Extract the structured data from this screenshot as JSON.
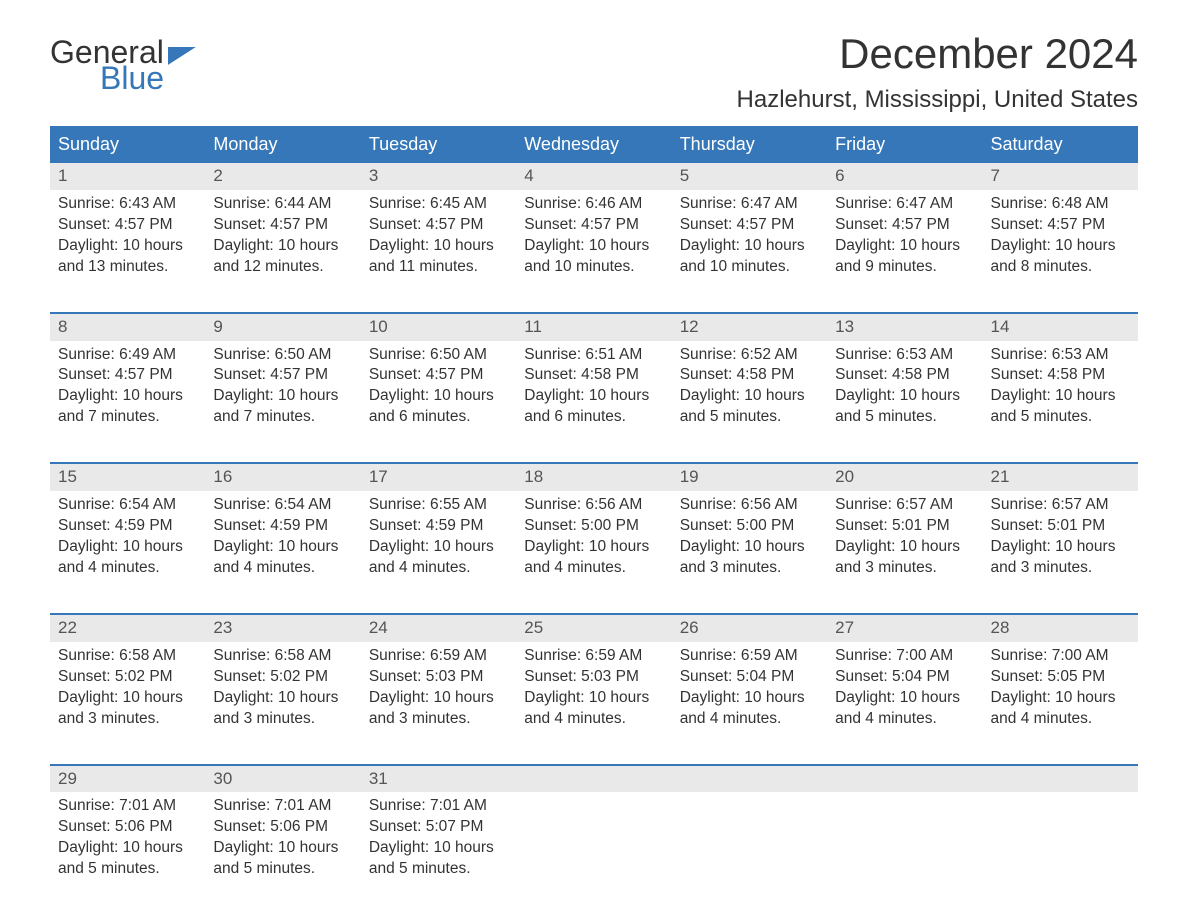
{
  "logo": {
    "line1": "General",
    "line2": "Blue"
  },
  "title": "December 2024",
  "location": "Hazlehurst, Mississippi, United States",
  "colors": {
    "header_bg": "#3577b8",
    "header_text": "#ffffff",
    "daynum_band_bg": "#e9e9e9",
    "text": "#333333",
    "rule": "#3577b8",
    "logo_accent": "#3577b8"
  },
  "day_headers": [
    "Sunday",
    "Monday",
    "Tuesday",
    "Wednesday",
    "Thursday",
    "Friday",
    "Saturday"
  ],
  "weeks": [
    [
      {
        "num": "1",
        "sunrise": "Sunrise: 6:43 AM",
        "sunset": "Sunset: 4:57 PM",
        "daylight": "Daylight: 10 hours and 13 minutes."
      },
      {
        "num": "2",
        "sunrise": "Sunrise: 6:44 AM",
        "sunset": "Sunset: 4:57 PM",
        "daylight": "Daylight: 10 hours and 12 minutes."
      },
      {
        "num": "3",
        "sunrise": "Sunrise: 6:45 AM",
        "sunset": "Sunset: 4:57 PM",
        "daylight": "Daylight: 10 hours and 11 minutes."
      },
      {
        "num": "4",
        "sunrise": "Sunrise: 6:46 AM",
        "sunset": "Sunset: 4:57 PM",
        "daylight": "Daylight: 10 hours and 10 minutes."
      },
      {
        "num": "5",
        "sunrise": "Sunrise: 6:47 AM",
        "sunset": "Sunset: 4:57 PM",
        "daylight": "Daylight: 10 hours and 10 minutes."
      },
      {
        "num": "6",
        "sunrise": "Sunrise: 6:47 AM",
        "sunset": "Sunset: 4:57 PM",
        "daylight": "Daylight: 10 hours and 9 minutes."
      },
      {
        "num": "7",
        "sunrise": "Sunrise: 6:48 AM",
        "sunset": "Sunset: 4:57 PM",
        "daylight": "Daylight: 10 hours and 8 minutes."
      }
    ],
    [
      {
        "num": "8",
        "sunrise": "Sunrise: 6:49 AM",
        "sunset": "Sunset: 4:57 PM",
        "daylight": "Daylight: 10 hours and 7 minutes."
      },
      {
        "num": "9",
        "sunrise": "Sunrise: 6:50 AM",
        "sunset": "Sunset: 4:57 PM",
        "daylight": "Daylight: 10 hours and 7 minutes."
      },
      {
        "num": "10",
        "sunrise": "Sunrise: 6:50 AM",
        "sunset": "Sunset: 4:57 PM",
        "daylight": "Daylight: 10 hours and 6 minutes."
      },
      {
        "num": "11",
        "sunrise": "Sunrise: 6:51 AM",
        "sunset": "Sunset: 4:58 PM",
        "daylight": "Daylight: 10 hours and 6 minutes."
      },
      {
        "num": "12",
        "sunrise": "Sunrise: 6:52 AM",
        "sunset": "Sunset: 4:58 PM",
        "daylight": "Daylight: 10 hours and 5 minutes."
      },
      {
        "num": "13",
        "sunrise": "Sunrise: 6:53 AM",
        "sunset": "Sunset: 4:58 PM",
        "daylight": "Daylight: 10 hours and 5 minutes."
      },
      {
        "num": "14",
        "sunrise": "Sunrise: 6:53 AM",
        "sunset": "Sunset: 4:58 PM",
        "daylight": "Daylight: 10 hours and 5 minutes."
      }
    ],
    [
      {
        "num": "15",
        "sunrise": "Sunrise: 6:54 AM",
        "sunset": "Sunset: 4:59 PM",
        "daylight": "Daylight: 10 hours and 4 minutes."
      },
      {
        "num": "16",
        "sunrise": "Sunrise: 6:54 AM",
        "sunset": "Sunset: 4:59 PM",
        "daylight": "Daylight: 10 hours and 4 minutes."
      },
      {
        "num": "17",
        "sunrise": "Sunrise: 6:55 AM",
        "sunset": "Sunset: 4:59 PM",
        "daylight": "Daylight: 10 hours and 4 minutes."
      },
      {
        "num": "18",
        "sunrise": "Sunrise: 6:56 AM",
        "sunset": "Sunset: 5:00 PM",
        "daylight": "Daylight: 10 hours and 4 minutes."
      },
      {
        "num": "19",
        "sunrise": "Sunrise: 6:56 AM",
        "sunset": "Sunset: 5:00 PM",
        "daylight": "Daylight: 10 hours and 3 minutes."
      },
      {
        "num": "20",
        "sunrise": "Sunrise: 6:57 AM",
        "sunset": "Sunset: 5:01 PM",
        "daylight": "Daylight: 10 hours and 3 minutes."
      },
      {
        "num": "21",
        "sunrise": "Sunrise: 6:57 AM",
        "sunset": "Sunset: 5:01 PM",
        "daylight": "Daylight: 10 hours and 3 minutes."
      }
    ],
    [
      {
        "num": "22",
        "sunrise": "Sunrise: 6:58 AM",
        "sunset": "Sunset: 5:02 PM",
        "daylight": "Daylight: 10 hours and 3 minutes."
      },
      {
        "num": "23",
        "sunrise": "Sunrise: 6:58 AM",
        "sunset": "Sunset: 5:02 PM",
        "daylight": "Daylight: 10 hours and 3 minutes."
      },
      {
        "num": "24",
        "sunrise": "Sunrise: 6:59 AM",
        "sunset": "Sunset: 5:03 PM",
        "daylight": "Daylight: 10 hours and 3 minutes."
      },
      {
        "num": "25",
        "sunrise": "Sunrise: 6:59 AM",
        "sunset": "Sunset: 5:03 PM",
        "daylight": "Daylight: 10 hours and 4 minutes."
      },
      {
        "num": "26",
        "sunrise": "Sunrise: 6:59 AM",
        "sunset": "Sunset: 5:04 PM",
        "daylight": "Daylight: 10 hours and 4 minutes."
      },
      {
        "num": "27",
        "sunrise": "Sunrise: 7:00 AM",
        "sunset": "Sunset: 5:04 PM",
        "daylight": "Daylight: 10 hours and 4 minutes."
      },
      {
        "num": "28",
        "sunrise": "Sunrise: 7:00 AM",
        "sunset": "Sunset: 5:05 PM",
        "daylight": "Daylight: 10 hours and 4 minutes."
      }
    ],
    [
      {
        "num": "29",
        "sunrise": "Sunrise: 7:01 AM",
        "sunset": "Sunset: 5:06 PM",
        "daylight": "Daylight: 10 hours and 5 minutes."
      },
      {
        "num": "30",
        "sunrise": "Sunrise: 7:01 AM",
        "sunset": "Sunset: 5:06 PM",
        "daylight": "Daylight: 10 hours and 5 minutes."
      },
      {
        "num": "31",
        "sunrise": "Sunrise: 7:01 AM",
        "sunset": "Sunset: 5:07 PM",
        "daylight": "Daylight: 10 hours and 5 minutes."
      },
      {
        "empty": true
      },
      {
        "empty": true
      },
      {
        "empty": true
      },
      {
        "empty": true
      }
    ]
  ]
}
